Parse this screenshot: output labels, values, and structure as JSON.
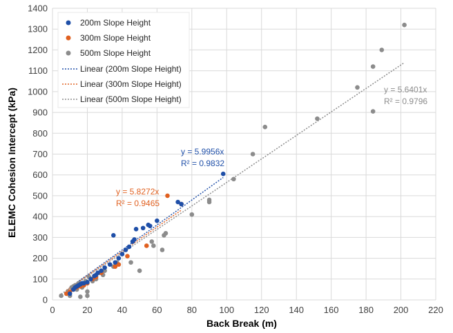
{
  "chart_data": {
    "type": "scatter",
    "xlabel": "Back Break (m)",
    "ylabel": "ELEMC Cohesion Intercept (kPa)",
    "xlim": [
      0,
      220
    ],
    "ylim": [
      0,
      1400
    ],
    "x_ticks": [
      "0",
      "20",
      "40",
      "60",
      "80",
      "100",
      "120",
      "140",
      "160",
      "180",
      "200",
      "220"
    ],
    "y_ticks": [
      "0",
      "100",
      "200",
      "300",
      "400",
      "500",
      "600",
      "700",
      "800",
      "900",
      "1000",
      "1100",
      "1200",
      "1300",
      "1400"
    ],
    "grid": true,
    "legend_position": "top-left",
    "series": [
      {
        "name": "200m Slope Height",
        "color": "#1f4fa8",
        "points": [
          [
            10,
            30
          ],
          [
            12,
            50
          ],
          [
            13,
            60
          ],
          [
            14,
            65
          ],
          [
            15,
            70
          ],
          [
            16,
            75
          ],
          [
            17,
            80
          ],
          [
            18,
            80
          ],
          [
            20,
            85
          ],
          [
            22,
            100
          ],
          [
            24,
            115
          ],
          [
            25,
            120
          ],
          [
            26,
            130
          ],
          [
            28,
            140
          ],
          [
            30,
            155
          ],
          [
            33,
            170
          ],
          [
            35,
            310
          ],
          [
            36,
            180
          ],
          [
            38,
            200
          ],
          [
            40,
            220
          ],
          [
            42,
            240
          ],
          [
            44,
            255
          ],
          [
            46,
            280
          ],
          [
            47,
            290
          ],
          [
            48,
            340
          ],
          [
            52,
            345
          ],
          [
            55,
            360
          ],
          [
            56,
            355
          ],
          [
            60,
            380
          ],
          [
            72,
            470
          ],
          [
            74,
            460
          ],
          [
            98,
            605
          ]
        ],
        "trendline": {
          "name": "Linear (200m Slope Height)",
          "slope": 5.9956,
          "x_range": [
            10,
            98
          ],
          "equation": "y = 5.9956x",
          "r2": "R² = 0.9832"
        }
      },
      {
        "name": "300m Slope Height",
        "color": "#e06020",
        "points": [
          [
            8,
            30
          ],
          [
            10,
            40
          ],
          [
            12,
            50
          ],
          [
            14,
            60
          ],
          [
            16,
            65
          ],
          [
            18,
            70
          ],
          [
            20,
            80
          ],
          [
            23,
            100
          ],
          [
            25,
            110
          ],
          [
            28,
            130
          ],
          [
            36,
            160
          ],
          [
            38,
            170
          ],
          [
            43,
            210
          ],
          [
            54,
            260
          ],
          [
            66,
            500
          ],
          [
            74,
            460
          ]
        ],
        "trendline": {
          "name": "Linear (300m Slope Height)",
          "slope": 5.8272,
          "x_range": [
            8,
            74
          ],
          "equation": "y = 5.8272x",
          "r2": "R² = 0.9465"
        }
      },
      {
        "name": "500m Slope Height",
        "color": "#8c8c8c",
        "points": [
          [
            5,
            20
          ],
          [
            8,
            30
          ],
          [
            9,
            40
          ],
          [
            10,
            20
          ],
          [
            11,
            60
          ],
          [
            12,
            65
          ],
          [
            13,
            70
          ],
          [
            14,
            50
          ],
          [
            15,
            80
          ],
          [
            16,
            15
          ],
          [
            17,
            60
          ],
          [
            18,
            70
          ],
          [
            19,
            90
          ],
          [
            20,
            20
          ],
          [
            20,
            40
          ],
          [
            21,
            110
          ],
          [
            22,
            100
          ],
          [
            23,
            90
          ],
          [
            25,
            100
          ],
          [
            27,
            130
          ],
          [
            29,
            120
          ],
          [
            30,
            140
          ],
          [
            35,
            160
          ],
          [
            37,
            180
          ],
          [
            45,
            180
          ],
          [
            50,
            140
          ],
          [
            57,
            280
          ],
          [
            58,
            260
          ],
          [
            63,
            240
          ],
          [
            64,
            310
          ],
          [
            65,
            320
          ],
          [
            80,
            410
          ],
          [
            90,
            470
          ],
          [
            90,
            480
          ],
          [
            104,
            580
          ],
          [
            115,
            700
          ],
          [
            122,
            830
          ],
          [
            152,
            870
          ],
          [
            175,
            1020
          ],
          [
            184,
            905
          ],
          [
            184,
            1120
          ],
          [
            189,
            1200
          ],
          [
            202,
            1320
          ]
        ],
        "trendline": {
          "name": "Linear (500m Slope Height)",
          "slope": 5.6401,
          "x_range": [
            5,
            202
          ],
          "equation": "y = 5.6401x",
          "r2": "R² = 0.9796"
        }
      }
    ]
  }
}
